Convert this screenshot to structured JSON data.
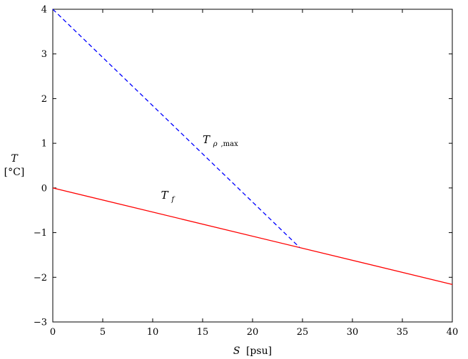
{
  "chart_data": {
    "type": "line",
    "title": "",
    "xlabel": {
      "symbol": "S",
      "unit": "[psu]"
    },
    "ylabel": {
      "symbol": "T",
      "unit": "[°C]"
    },
    "xlim": [
      0,
      40
    ],
    "ylim": [
      -3,
      4
    ],
    "xticks": [
      0,
      5,
      10,
      15,
      20,
      25,
      30,
      35,
      40
    ],
    "yticks": [
      4,
      3,
      2,
      1,
      0,
      -1,
      -2,
      -3
    ],
    "ytick_labels": [
      "4",
      "3",
      "2",
      "1",
      "0",
      "−1",
      "−2",
      "−3"
    ],
    "grid": false,
    "series": [
      {
        "name": "T_f",
        "label_main": "T",
        "label_sub": "f",
        "label_at": [
          10.9,
          -0.24
        ],
        "color": "#ff0000",
        "dash": "solid",
        "x": [
          0,
          40
        ],
        "y": [
          0,
          -2.16
        ]
      },
      {
        "name": "T_ρ,max",
        "label_main": "T",
        "label_sub_greek": "ρ",
        "label_sub_text": ",max",
        "label_at": [
          15.0,
          1.0
        ],
        "color": "#0000ff",
        "dash": "dashed",
        "x": [
          0,
          24.7
        ],
        "y": [
          4,
          -1.33
        ]
      }
    ]
  }
}
